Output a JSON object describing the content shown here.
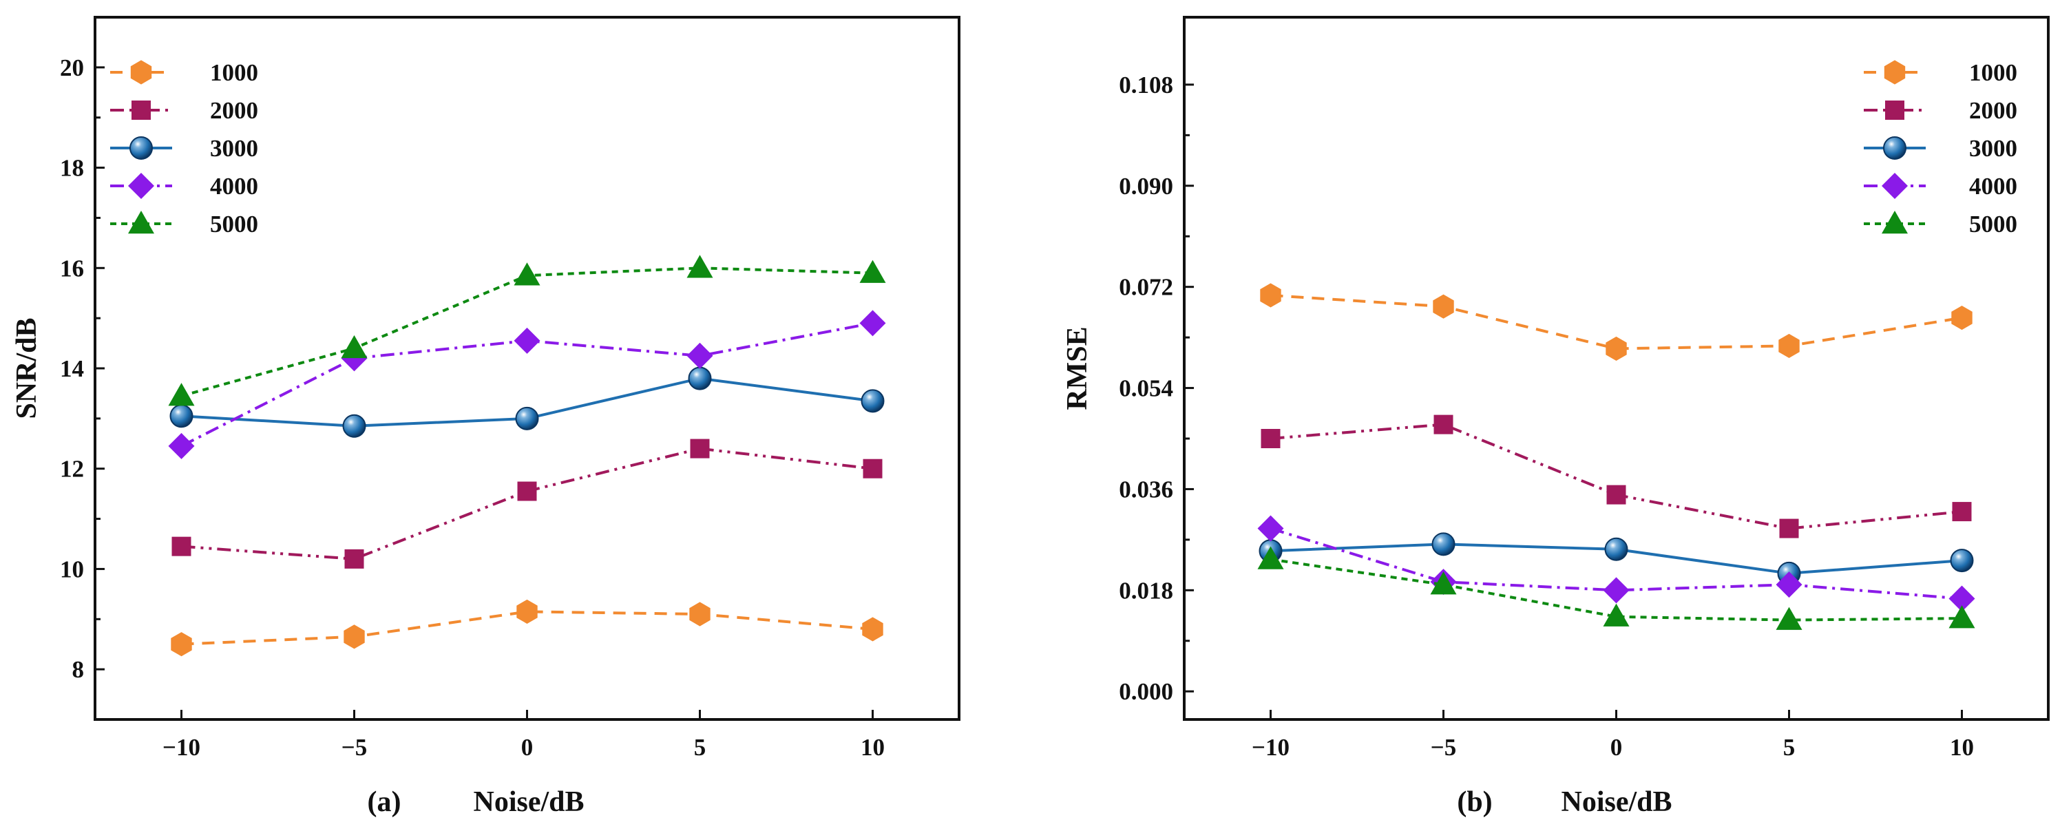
{
  "chart_data": [
    {
      "type": "line",
      "panel_label": "(a)",
      "xlabel": "Noise/dB",
      "ylabel": "SNR/dB",
      "x": [
        -10,
        -5,
        0,
        5,
        10
      ],
      "x_tick_labels": [
        "−10",
        "−5",
        "0",
        "5",
        "10"
      ],
      "xlim": [
        -12.5,
        12.5
      ],
      "ylim": [
        7,
        21
      ],
      "y_ticks": [
        8,
        10,
        12,
        14,
        16,
        18,
        20
      ],
      "y_tick_labels": [
        "8",
        "10",
        "12",
        "14",
        "16",
        "18",
        "20"
      ],
      "legend_position": "top-left",
      "series": [
        {
          "name": "1000",
          "values": [
            8.5,
            8.65,
            9.15,
            9.1,
            8.8
          ]
        },
        {
          "name": "2000",
          "values": [
            10.45,
            10.2,
            11.55,
            12.4,
            12.0
          ]
        },
        {
          "name": "3000",
          "values": [
            13.05,
            12.85,
            13.0,
            13.8,
            13.35
          ]
        },
        {
          "name": "4000",
          "values": [
            12.45,
            14.2,
            14.55,
            14.25,
            14.9
          ]
        },
        {
          "name": "5000",
          "values": [
            13.45,
            14.4,
            15.85,
            16.0,
            15.9
          ]
        }
      ]
    },
    {
      "type": "line",
      "panel_label": "(b)",
      "xlabel": "Noise/dB",
      "ylabel": "RMSE",
      "x": [
        -10,
        -5,
        0,
        5,
        10
      ],
      "x_tick_labels": [
        "−10",
        "−5",
        "0",
        "5",
        "10"
      ],
      "xlim": [
        -12.5,
        12.5
      ],
      "ylim": [
        -0.005,
        0.12
      ],
      "y_ticks": [
        0.0,
        0.018,
        0.036,
        0.054,
        0.072,
        0.09,
        0.108
      ],
      "y_tick_labels": [
        "0.000",
        "0.018",
        "0.036",
        "0.054",
        "0.072",
        "0.090",
        "0.108"
      ],
      "legend_position": "top-right",
      "series": [
        {
          "name": "1000",
          "values": [
            0.0705,
            0.0685,
            0.061,
            0.0615,
            0.0665
          ]
        },
        {
          "name": "2000",
          "values": [
            0.045,
            0.0475,
            0.035,
            0.029,
            0.032
          ]
        },
        {
          "name": "3000",
          "values": [
            0.025,
            0.0262,
            0.0253,
            0.021,
            0.0233
          ]
        },
        {
          "name": "4000",
          "values": [
            0.029,
            0.0195,
            0.018,
            0.019,
            0.0165
          ]
        },
        {
          "name": "5000",
          "values": [
            0.0235,
            0.019,
            0.0133,
            0.0127,
            0.013
          ]
        }
      ]
    }
  ],
  "series_styles": [
    {
      "color": "#F28A30",
      "marker": "hexagon",
      "dash": "18 12"
    },
    {
      "color": "#A1195C",
      "marker": "square",
      "dash": "20 8 4 8 4 8"
    },
    {
      "color": "#1F6FB0",
      "marker": "sphere",
      "dash": ""
    },
    {
      "color": "#8A1AE8",
      "marker": "diamond",
      "dash": "20 8 4 8"
    },
    {
      "color": "#0E8A12",
      "marker": "triangle",
      "dash": "9 7"
    }
  ]
}
